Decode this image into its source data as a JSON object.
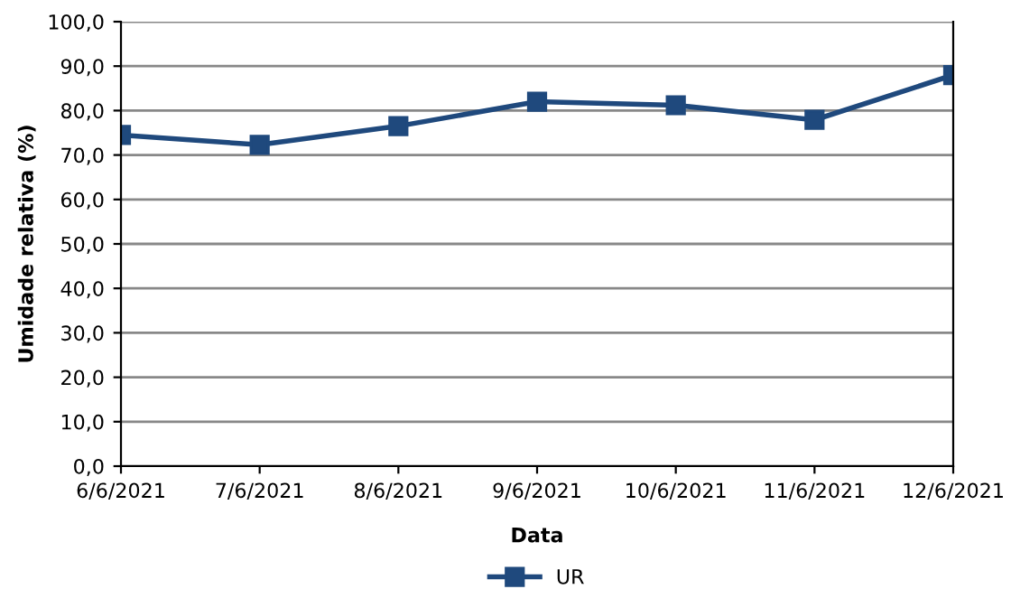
{
  "chart_data": {
    "type": "line",
    "xlabel": "Data",
    "ylabel": "Umidade relativa (%)",
    "categories": [
      "6/6/2021",
      "7/6/2021",
      "8/6/2021",
      "9/6/2021",
      "10/6/2021",
      "11/6/2021",
      "12/6/2021"
    ],
    "series": [
      {
        "name": "UR",
        "color": "#1f497d",
        "values": [
          74.5,
          72.3,
          76.5,
          82.0,
          81.2,
          77.9,
          88.0
        ]
      }
    ],
    "ylim": [
      0,
      100
    ],
    "yticks": [
      {
        "value": 0,
        "label": "0,0"
      },
      {
        "value": 10,
        "label": "10,0"
      },
      {
        "value": 20,
        "label": "20,0"
      },
      {
        "value": 30,
        "label": "30,0"
      },
      {
        "value": 40,
        "label": "40,0"
      },
      {
        "value": 50,
        "label": "50,0"
      },
      {
        "value": 60,
        "label": "60,0"
      },
      {
        "value": 70,
        "label": "70,0"
      },
      {
        "value": 80,
        "label": "80,0"
      },
      {
        "value": 90,
        "label": "90,0"
      },
      {
        "value": 100,
        "label": "100,0"
      }
    ],
    "grid": "y",
    "legend": "bottom",
    "marker": "square",
    "line_style": "solid"
  }
}
